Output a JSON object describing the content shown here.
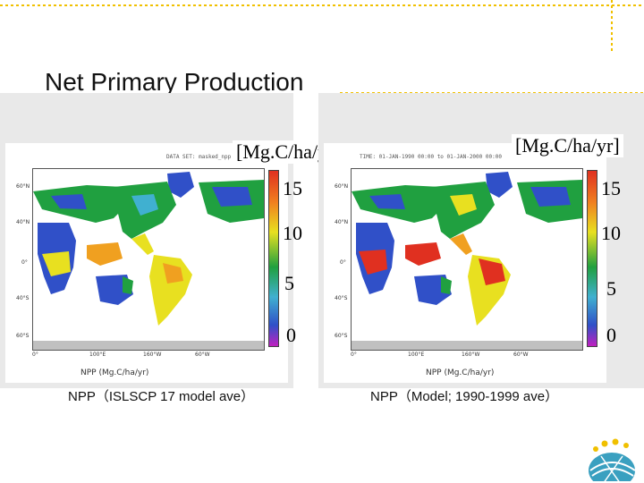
{
  "slide": {
    "title": "Net Primary Production"
  },
  "left_map": {
    "header": "DATA SET: masked_npp",
    "unit": "[Mg.C/ha/yr]",
    "colorbar_labels": [
      "15",
      "10",
      "5",
      "0"
    ],
    "xlabel": "NPP (Mg.C/ha/yr)",
    "caption": "NPP（ISLSCP 17 model ave）",
    "lat_ticks": [
      "60°N",
      "40°N",
      "0°",
      "40°S",
      "60°S"
    ],
    "lon_ticks": [
      "0°",
      "100°E",
      "160°W",
      "60°W"
    ]
  },
  "right_map": {
    "header": "TIME: 01-JAN-1990 00:00 to 01-JAN-2000 00:00",
    "unit": "[Mg.C/ha/yr]",
    "colorbar_labels": [
      "15",
      "10",
      "5",
      "0"
    ],
    "xlabel": "NPP (Mg.C/ha/yr)",
    "caption": "NPP（Model; 1990-1999 ave）",
    "lat_ticks": [
      "60°N",
      "40°N",
      "0°",
      "40°S",
      "60°S"
    ],
    "lon_ticks": [
      "0°",
      "100°E",
      "160°W",
      "60°W"
    ]
  },
  "colors": {
    "ocean": "#ffffff",
    "low": "#3050c8",
    "mid": "#20a040",
    "high": "#e8e020",
    "max": "#e03020"
  }
}
